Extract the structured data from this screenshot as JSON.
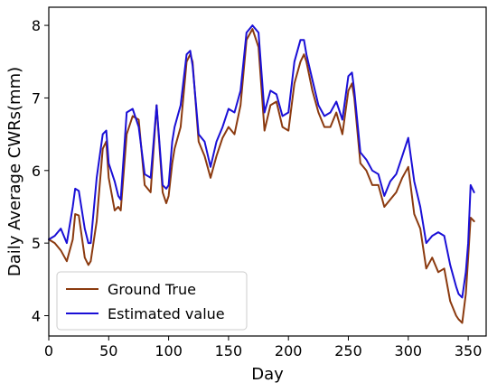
{
  "chart_data": {
    "type": "line",
    "xlabel": "Day",
    "ylabel": "Daily Average CWRs(mm)",
    "xlim": [
      0,
      365
    ],
    "ylim": [
      3.72,
      8.25
    ],
    "xticks": [
      0,
      50,
      100,
      150,
      200,
      250,
      300,
      350
    ],
    "yticks": [
      4,
      5,
      6,
      7,
      8
    ],
    "grid": false,
    "legend": {
      "position": "lower-left"
    },
    "series": [
      {
        "name": "Ground True",
        "color": "#8b3a0f",
        "x": [
          0,
          5,
          10,
          15,
          20,
          22,
          25,
          30,
          33,
          35,
          40,
          45,
          48,
          50,
          55,
          58,
          60,
          65,
          70,
          75,
          80,
          85,
          90,
          95,
          98,
          100,
          103,
          105,
          110,
          115,
          118,
          120,
          125,
          130,
          135,
          140,
          145,
          150,
          155,
          160,
          165,
          170,
          175,
          180,
          185,
          190,
          195,
          200,
          205,
          210,
          213,
          215,
          220,
          225,
          230,
          235,
          240,
          245,
          250,
          253,
          255,
          260,
          265,
          270,
          275,
          280,
          285,
          290,
          295,
          300,
          305,
          310,
          315,
          320,
          325,
          330,
          335,
          340,
          342,
          345,
          348,
          350,
          352,
          355
        ],
        "values": [
          5.05,
          5.0,
          4.9,
          4.75,
          5.05,
          5.4,
          5.38,
          4.8,
          4.7,
          4.75,
          5.3,
          6.3,
          6.4,
          5.9,
          5.45,
          5.5,
          5.45,
          6.5,
          6.75,
          6.7,
          5.8,
          5.7,
          6.9,
          5.7,
          5.55,
          5.65,
          6.1,
          6.3,
          6.6,
          7.5,
          7.6,
          7.5,
          6.4,
          6.2,
          5.9,
          6.2,
          6.45,
          6.6,
          6.5,
          6.9,
          7.8,
          7.95,
          7.7,
          6.55,
          6.9,
          6.95,
          6.6,
          6.55,
          7.2,
          7.5,
          7.6,
          7.5,
          7.1,
          6.8,
          6.6,
          6.6,
          6.8,
          6.5,
          7.1,
          7.2,
          7.0,
          6.1,
          6.0,
          5.8,
          5.8,
          5.5,
          5.6,
          5.7,
          5.9,
          6.05,
          5.4,
          5.2,
          4.65,
          4.8,
          4.6,
          4.65,
          4.2,
          4.0,
          3.95,
          3.9,
          4.3,
          4.8,
          5.35,
          5.3
        ]
      },
      {
        "name": "Estimated value",
        "color": "#1a0fd6",
        "x": [
          0,
          5,
          10,
          15,
          20,
          22,
          25,
          30,
          33,
          35,
          40,
          45,
          48,
          50,
          55,
          58,
          60,
          65,
          70,
          75,
          80,
          85,
          90,
          95,
          98,
          100,
          103,
          105,
          110,
          115,
          118,
          120,
          125,
          130,
          135,
          140,
          145,
          150,
          155,
          160,
          165,
          170,
          175,
          180,
          185,
          190,
          195,
          200,
          205,
          210,
          213,
          215,
          220,
          225,
          230,
          235,
          240,
          245,
          250,
          253,
          255,
          260,
          265,
          270,
          275,
          280,
          285,
          290,
          295,
          300,
          305,
          310,
          315,
          320,
          325,
          330,
          335,
          340,
          342,
          345,
          348,
          350,
          352,
          355
        ],
        "values": [
          5.05,
          5.1,
          5.2,
          5.0,
          5.5,
          5.75,
          5.72,
          5.2,
          5.0,
          5.0,
          5.9,
          6.5,
          6.55,
          6.1,
          5.85,
          5.65,
          5.6,
          6.8,
          6.85,
          6.6,
          5.95,
          5.9,
          6.9,
          5.8,
          5.75,
          5.8,
          6.4,
          6.6,
          6.9,
          7.6,
          7.65,
          7.45,
          6.5,
          6.4,
          6.05,
          6.4,
          6.6,
          6.85,
          6.8,
          7.1,
          7.9,
          8.0,
          7.9,
          6.8,
          7.1,
          7.05,
          6.75,
          6.8,
          7.5,
          7.8,
          7.8,
          7.6,
          7.25,
          6.9,
          6.75,
          6.8,
          6.95,
          6.7,
          7.3,
          7.35,
          7.1,
          6.25,
          6.15,
          6.0,
          5.95,
          5.65,
          5.85,
          5.95,
          6.2,
          6.45,
          5.85,
          5.5,
          5.0,
          5.1,
          5.15,
          5.1,
          4.7,
          4.4,
          4.3,
          4.25,
          4.6,
          5.0,
          5.8,
          5.7
        ]
      }
    ]
  }
}
